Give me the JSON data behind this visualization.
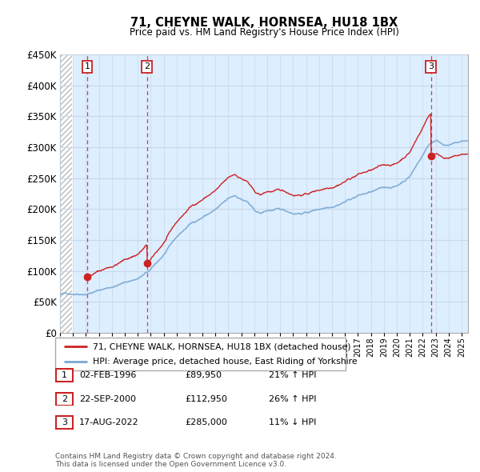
{
  "title": "71, CHEYNE WALK, HORNSEA, HU18 1BX",
  "subtitle": "Price paid vs. HM Land Registry's House Price Index (HPI)",
  "ylim": [
    0,
    450000
  ],
  "yticks": [
    0,
    50000,
    100000,
    150000,
    200000,
    250000,
    300000,
    350000,
    400000,
    450000
  ],
  "ytick_labels": [
    "£0",
    "£50K",
    "£100K",
    "£150K",
    "£200K",
    "£250K",
    "£300K",
    "£350K",
    "£400K",
    "£450K"
  ],
  "xlim_start": 1994.0,
  "xlim_end": 2025.5,
  "sale_dates": [
    1996.09,
    2000.72,
    2022.63
  ],
  "sale_prices": [
    89950,
    112950,
    285000
  ],
  "sale_labels": [
    "1",
    "2",
    "3"
  ],
  "hpi_color": "#7aa8d2",
  "price_color": "#cc2222",
  "legend1": "71, CHEYNE WALK, HORNSEA, HU18 1BX (detached house)",
  "legend2": "HPI: Average price, detached house, East Riding of Yorkshire",
  "table_rows": [
    [
      "1",
      "02-FEB-1996",
      "£89,950",
      "21% ↑ HPI"
    ],
    [
      "2",
      "22-SEP-2000",
      "£112,950",
      "26% ↑ HPI"
    ],
    [
      "3",
      "17-AUG-2022",
      "£285,000",
      "11% ↓ HPI"
    ]
  ],
  "footnote": "Contains HM Land Registry data © Crown copyright and database right 2024.\nThis data is licensed under the Open Government Licence v3.0.",
  "grid_color": "#c8d8e8",
  "plot_bg_color": "#ddeeff",
  "hatch_color": "#bbbbbb"
}
